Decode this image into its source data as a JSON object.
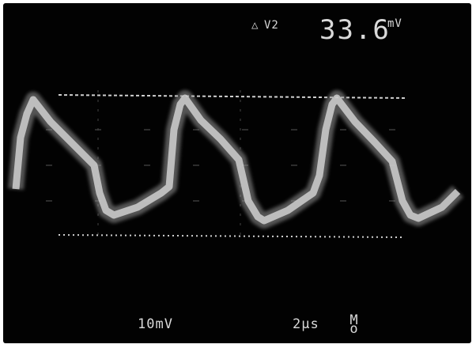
{
  "readout": {
    "delta_symbol": "△",
    "channel": "V2",
    "measurement_value": "33.6",
    "measurement_unit": "mV"
  },
  "scale": {
    "volts_per_div": "10mV",
    "time_per_div": "2μs",
    "trigger_mode_line1": "M",
    "trigger_mode_line2": "o"
  },
  "colors": {
    "background": "#020202",
    "trace": "#d0d0d0",
    "text": "#d9d9d9"
  },
  "waveform": {
    "type": "sawtooth",
    "cycles_visible": 3
  }
}
